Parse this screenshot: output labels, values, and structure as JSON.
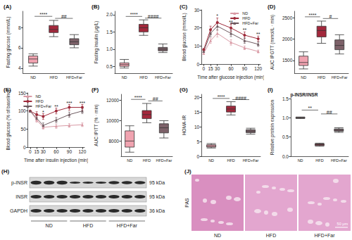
{
  "chart_data": [
    {
      "panel_label": "(A)",
      "type": "box",
      "y_label": "Fasting glucose (mmol/L)",
      "categories": [
        "ND",
        "HFD",
        "HFD+Far"
      ],
      "colors": [
        "#f0a3b0",
        "#a3283c",
        "#7d6169"
      ],
      "boxes": [
        [
          4.2,
          4.5,
          4.9,
          5.2,
          5.4
        ],
        [
          7.1,
          7.5,
          7.8,
          8.2,
          8.7
        ],
        [
          6.0,
          6.3,
          6.6,
          6.9,
          7.3
        ]
      ],
      "ylim": [
        3.5,
        9.6
      ],
      "yticks": [
        4,
        6,
        8
      ],
      "grid": false,
      "annotations": [
        {
          "text": "****",
          "from": "ND",
          "to": "HFD",
          "y": 9.1
        },
        {
          "text": "##",
          "from": "HFD",
          "to": "HFD+Far",
          "y": 8.9
        }
      ]
    },
    {
      "panel_label": "(B)",
      "type": "box",
      "y_label": "Fasting insulin (μg/L)",
      "categories": [
        "ND",
        "HFD",
        "HFD+Far"
      ],
      "colors": [
        "#f0a3b0",
        "#a3283c",
        "#7d6169"
      ],
      "boxes": [
        [
          0.45,
          0.5,
          0.55,
          0.6,
          0.7
        ],
        [
          1.4,
          1.5,
          1.62,
          1.72,
          1.85
        ],
        [
          0.9,
          0.95,
          1.0,
          1.05,
          1.15
        ]
      ],
      "ylim": [
        0.3,
        2.1
      ],
      "yticks": [
        {
          "value": 0.5,
          "label": "0.5"
        },
        {
          "value": 1,
          "label": "1.0"
        },
        {
          "value": 1.5,
          "label": "1.5"
        },
        {
          "value": 2,
          "label": "2.0"
        }
      ],
      "grid": false,
      "annotations": [
        {
          "text": "****",
          "from": "ND",
          "to": "HFD",
          "y": 1.95
        },
        {
          "text": "####",
          "from": "HFD",
          "to": "HFD+Far",
          "y": 1.9
        }
      ]
    },
    {
      "panel_label": "(C)",
      "type": "line",
      "y_label": "Blood glucose (mmol/L)",
      "x_label": "Time after glucose injection (min)",
      "x": [
        0,
        15,
        30,
        60,
        90,
        120
      ],
      "xlim": [
        -5,
        125
      ],
      "xticks": [
        0,
        15,
        30,
        60,
        90,
        120
      ],
      "ylim": [
        0,
        30
      ],
      "yticks": [
        0,
        10,
        20,
        30
      ],
      "grid": false,
      "legend": "upper right",
      "series": [
        {
          "name": "ND",
          "color": "#d99aa5",
          "marker": "triangle",
          "values": [
            6,
            13,
            17,
            12,
            9,
            7
          ],
          "errors": [
            0.5,
            1.5,
            2,
            1.5,
            1,
            0.8
          ]
        },
        {
          "name": "HFD",
          "color": "#9e2a3a",
          "marker": "circle",
          "values": [
            8,
            19,
            23,
            20,
            16,
            14
          ],
          "errors": [
            0.6,
            2,
            2.5,
            2,
            1.8,
            1.5
          ]
        },
        {
          "name": "HFD+Far",
          "color": "#6e5a60",
          "marker": "triangle",
          "values": [
            7,
            17,
            21,
            17,
            13,
            11
          ],
          "errors": [
            0.5,
            1.8,
            2.2,
            1.8,
            1.5,
            1.2
          ]
        }
      ],
      "annotations": [
        {
          "text": "*",
          "x": 30,
          "y": 26.5
        },
        {
          "text": "**",
          "x": 60,
          "y": 23
        },
        {
          "text": "**",
          "x": 90,
          "y": 19
        },
        {
          "text": "**",
          "x": 120,
          "y": 16.5
        }
      ]
    },
    {
      "panel_label": "(D)",
      "type": "box",
      "y_label": "AUC IPGTT (mmol/L · min)",
      "categories": [
        "ND",
        "HFD",
        "HFD+Far"
      ],
      "colors": [
        "#f0a3b0",
        "#a3283c",
        "#7d6169"
      ],
      "boxes": [
        [
          1300,
          1380,
          1450,
          1600,
          1700
        ],
        [
          1900,
          2050,
          2200,
          2300,
          2420
        ],
        [
          1650,
          1750,
          1850,
          1980,
          2100
        ]
      ],
      "ylim": [
        1200,
        2650
      ],
      "yticks": [
        1500,
        2000,
        2500
      ],
      "grid": false,
      "annotations": [
        {
          "text": "****",
          "from": "ND",
          "to": "HFD",
          "y": 2520
        },
        {
          "text": "#",
          "from": "HFD",
          "to": "HFD+Far",
          "y": 2480
        }
      ]
    },
    {
      "panel_label": "(E)",
      "type": "line",
      "y_label": "Blood glucose (% of baseline)",
      "x_label": "Time after insulin injection (min)",
      "x": [
        0,
        15,
        30,
        60,
        90,
        120
      ],
      "xlim": [
        -5,
        125
      ],
      "xticks": [
        0,
        15,
        30,
        60,
        90,
        120
      ],
      "ylim": [
        0,
        150
      ],
      "yticks": [
        0,
        50,
        100,
        150
      ],
      "grid": false,
      "legend": "upper left",
      "series": [
        {
          "name": "ND",
          "color": "#d99aa5",
          "marker": "triangle",
          "values": [
            100,
            75,
            55,
            58,
            60,
            62
          ],
          "errors": [
            0,
            6,
            5,
            6,
            5,
            5
          ]
        },
        {
          "name": "HFD",
          "color": "#9e2a3a",
          "marker": "circle",
          "values": [
            100,
            90,
            85,
            100,
            110,
            110
          ],
          "errors": [
            0,
            8,
            8,
            8,
            8,
            8
          ]
        },
        {
          "name": "HFD+Far",
          "color": "#6e5a60",
          "marker": "triangle",
          "values": [
            100,
            80,
            60,
            75,
            90,
            100
          ],
          "errors": [
            0,
            7,
            7,
            7,
            7,
            7
          ]
        }
      ],
      "annotations": [
        {
          "text": "*",
          "x": 30,
          "y": 96
        },
        {
          "text": "**",
          "x": 60,
          "y": 112
        },
        {
          "text": "***",
          "x": 90,
          "y": 122
        },
        {
          "text": "***",
          "x": 120,
          "y": 122
        }
      ]
    },
    {
      "panel_label": "(F)",
      "type": "box",
      "y_label": "AUC IPITT (% · min)",
      "categories": [
        "ND",
        "HFD",
        "HFD+Far"
      ],
      "colors": [
        "#f0a3b0",
        "#a3283c",
        "#7d6169"
      ],
      "boxes": [
        [
          6900,
          7400,
          8000,
          9000,
          9500
        ],
        [
          9800,
          10200,
          10600,
          11000,
          11700
        ],
        [
          8300,
          8800,
          9300,
          9700,
          10000
        ]
      ],
      "ylim": [
        6500,
        12600
      ],
      "yticks": [
        8000,
        10000,
        12000
      ],
      "grid": false,
      "annotations": [
        {
          "text": "****",
          "from": "ND",
          "to": "HFD",
          "y": 12100
        },
        {
          "text": "##",
          "from": "HFD",
          "to": "HFD+Far",
          "y": 11950
        }
      ]
    },
    {
      "panel_label": "(G)",
      "type": "box",
      "y_label": "HOMA-IR",
      "categories": [
        "ND",
        "HFD",
        "HFD+Far"
      ],
      "colors": [
        "#f0a3b0",
        "#a3283c",
        "#7d6169"
      ],
      "boxes": [
        [
          2.8,
          3.1,
          3.5,
          3.9,
          4.3
        ],
        [
          14,
          15,
          16,
          17,
          18.5
        ],
        [
          7.5,
          8,
          8.5,
          9,
          9.5
        ]
      ],
      "ylim": [
        0,
        21
      ],
      "yticks": [
        0,
        5,
        10,
        15,
        20
      ],
      "grid": false,
      "annotations": [
        {
          "text": "****",
          "from": "ND",
          "to": "HFD",
          "y": 19.6
        },
        {
          "text": "####",
          "from": "HFD",
          "to": "HFD+Far",
          "y": 19.2
        }
      ]
    },
    {
      "panel_label": "(I)",
      "type": "box",
      "title": "p-INSR/INSR",
      "y_label": "Relative protein expression",
      "categories": [
        "ND",
        "HFD",
        "HFD+Far"
      ],
      "colors": [
        "#f0a3b0",
        "#a3283c",
        "#7d6169"
      ],
      "boxes": [
        [
          0.98,
          0.99,
          1.0,
          1.01,
          1.02
        ],
        [
          0.26,
          0.28,
          0.3,
          0.32,
          0.34
        ],
        [
          0.62,
          0.65,
          0.68,
          0.71,
          0.74
        ]
      ],
      "ylim": [
        0,
        1.5
      ],
      "yticks": [
        {
          "value": 0,
          "label": "0.0"
        },
        {
          "value": 0.5,
          "label": "0.5"
        },
        {
          "value": 1,
          "label": "1.0"
        },
        {
          "value": 1.5,
          "label": "1.5"
        }
      ],
      "grid": false,
      "annotations": [
        {
          "text": "**",
          "from": "ND",
          "to": "HFD",
          "y": 1.2
        },
        {
          "text": "##",
          "from": "HFD",
          "to": "HFD+Far",
          "y": 1.1
        }
      ]
    }
  ],
  "blot": {
    "panel_label": "(H)",
    "rows": [
      {
        "label": "p-INSR",
        "size": "95 kDa"
      },
      {
        "label": "INSR",
        "size": "95 kDa"
      },
      {
        "label": "GAPDH",
        "size": "36 kDa"
      }
    ],
    "groups": [
      "ND",
      "HFD",
      "HFD+Far"
    ]
  },
  "histology": {
    "panel_label": "(J)",
    "stain": "PAS",
    "groups": [
      "ND",
      "HFD",
      "HFD+Far"
    ],
    "scale_bar": "50 μm"
  }
}
